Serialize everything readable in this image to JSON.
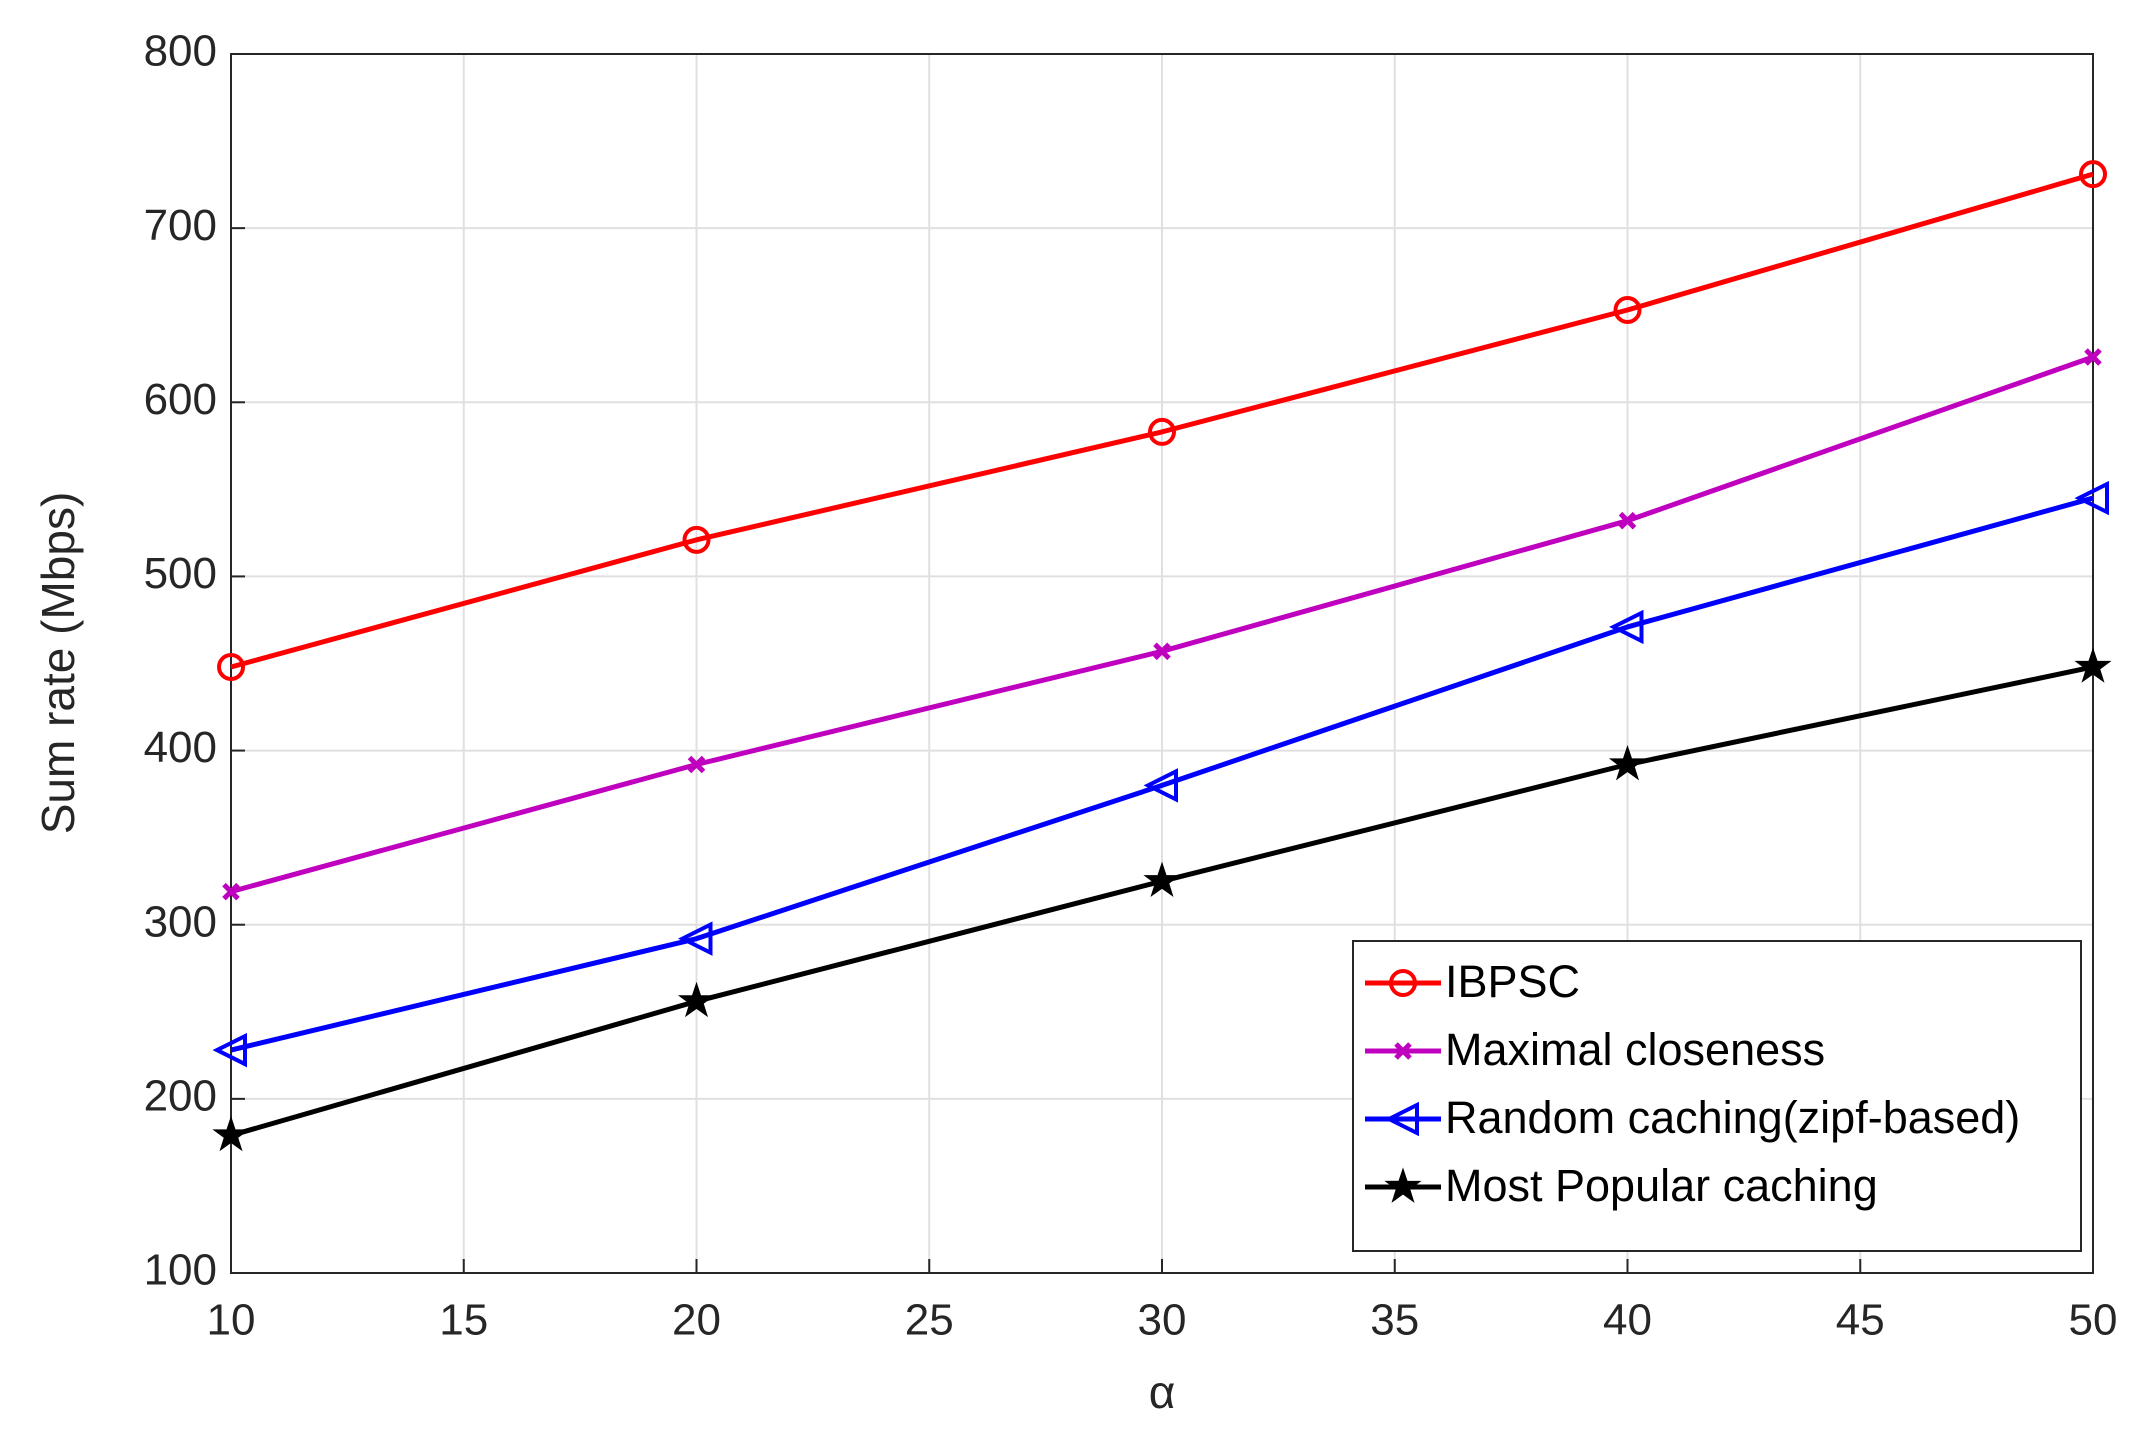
{
  "chart_data": {
    "type": "line",
    "x_label": "α",
    "y_label": "Sum rate (Mbps)",
    "x": [
      10,
      20,
      30,
      40,
      50
    ],
    "xlim": [
      10,
      50
    ],
    "xticks": [
      10,
      15,
      20,
      25,
      30,
      35,
      40,
      45,
      50
    ],
    "ylim": [
      100,
      800
    ],
    "yticks": [
      100,
      200,
      300,
      400,
      500,
      600,
      700,
      800
    ],
    "grid": true,
    "legend": "lower right",
    "series": [
      {
        "name": "IBPSC",
        "color": "#ff0000",
        "marker": "o",
        "values": [
          448,
          521,
          583,
          653,
          731
        ]
      },
      {
        "name": "Maximal closeness",
        "color": "#bf00bf",
        "marker": "x",
        "values": [
          319,
          392,
          457,
          532,
          626
        ]
      },
      {
        "name": "Random caching(zipf-based)",
        "color": "#0000ff",
        "marker": "<",
        "values": [
          228,
          292,
          380,
          471,
          545
        ]
      },
      {
        "name": "Most Popular caching",
        "color": "#000000",
        "marker": "*",
        "values": [
          179,
          256,
          325,
          392,
          448
        ]
      }
    ]
  }
}
